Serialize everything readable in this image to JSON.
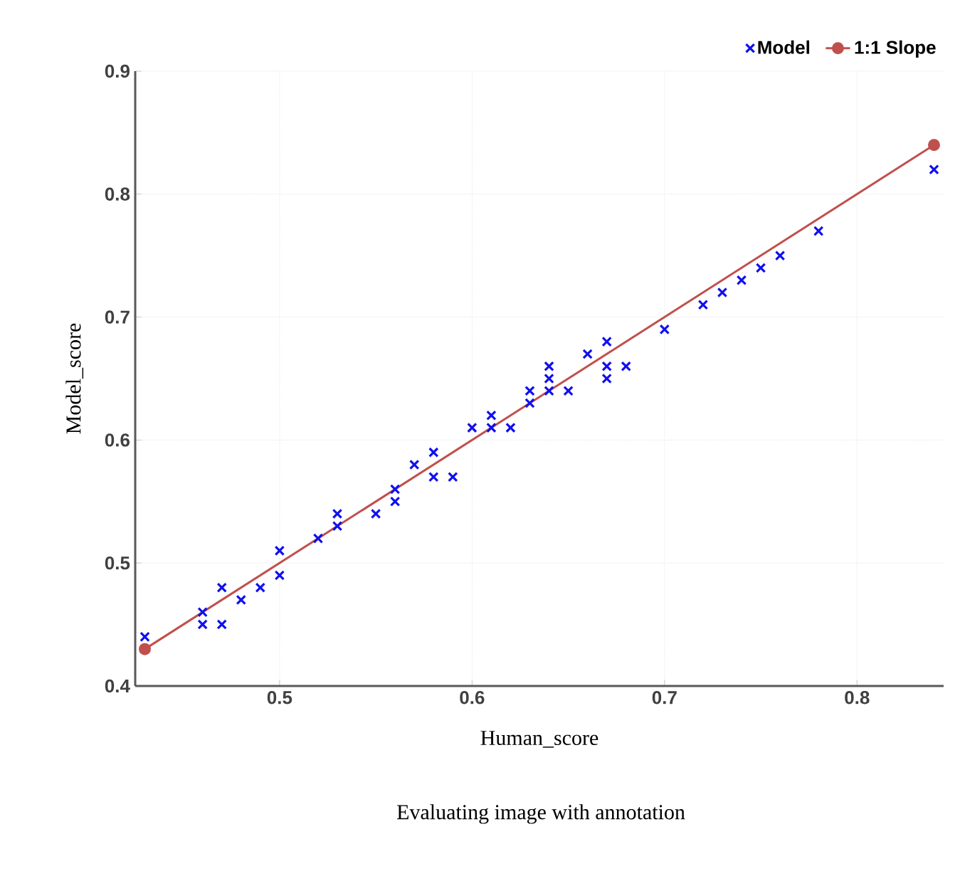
{
  "chart_data": {
    "type": "scatter",
    "xlabel": "Human_score",
    "ylabel": "Model_score",
    "annotations": [
      "Evaluating image with annotation"
    ],
    "xlim": [
      0.425,
      0.845
    ],
    "ylim": [
      0.4,
      0.9
    ],
    "xticks": [
      0.5,
      0.6,
      0.7,
      0.8
    ],
    "yticks": [
      0.4,
      0.5,
      0.6,
      0.7,
      0.8,
      0.9
    ],
    "grid": true,
    "legend": "top right",
    "series": [
      {
        "name": "Model",
        "marker": "cross",
        "color": "#1010ee",
        "x": [
          0.43,
          0.46,
          0.46,
          0.47,
          0.47,
          0.48,
          0.49,
          0.5,
          0.5,
          0.52,
          0.53,
          0.53,
          0.55,
          0.56,
          0.56,
          0.57,
          0.58,
          0.58,
          0.59,
          0.6,
          0.61,
          0.61,
          0.62,
          0.63,
          0.63,
          0.64,
          0.64,
          0.64,
          0.65,
          0.66,
          0.67,
          0.67,
          0.67,
          0.68,
          0.7,
          0.72,
          0.73,
          0.74,
          0.75,
          0.76,
          0.78,
          0.84
        ],
        "values": [
          0.44,
          0.46,
          0.45,
          0.48,
          0.45,
          0.47,
          0.48,
          0.49,
          0.51,
          0.52,
          0.53,
          0.54,
          0.54,
          0.55,
          0.56,
          0.58,
          0.59,
          0.57,
          0.57,
          0.61,
          0.62,
          0.61,
          0.61,
          0.63,
          0.64,
          0.66,
          0.65,
          0.64,
          0.64,
          0.67,
          0.68,
          0.66,
          0.65,
          0.66,
          0.69,
          0.71,
          0.72,
          0.73,
          0.74,
          0.75,
          0.77,
          0.82
        ]
      },
      {
        "name": "1:1 Slope",
        "type": "line",
        "marker": "circle",
        "color": "#c0504d",
        "x": [
          0.43,
          0.84
        ],
        "values": [
          0.43,
          0.84
        ]
      }
    ]
  }
}
